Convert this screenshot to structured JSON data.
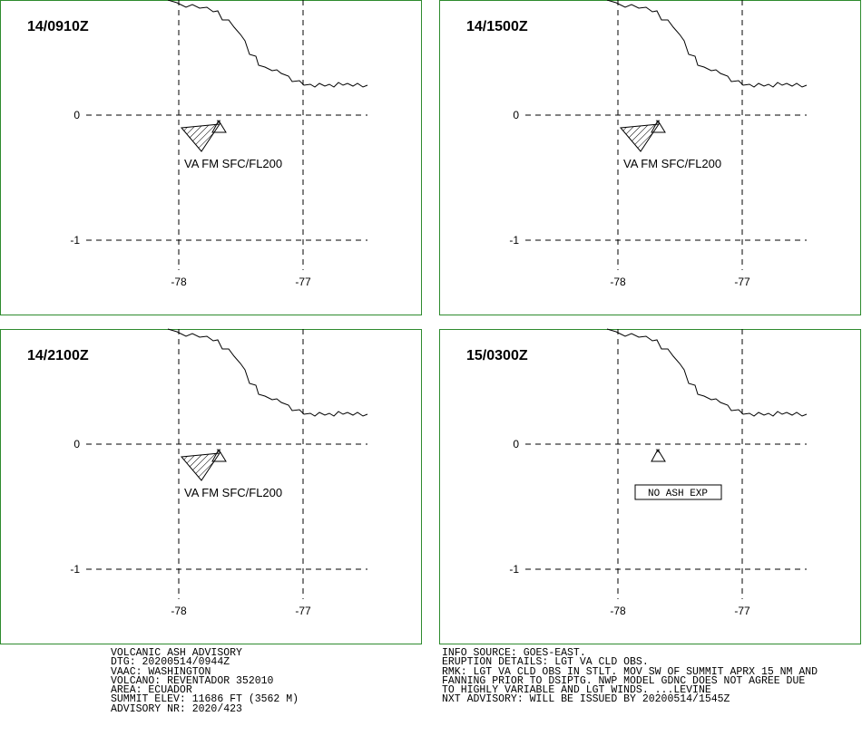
{
  "panels": [
    {
      "time": "14/0910Z",
      "lat_labels": [
        "0",
        "-1"
      ],
      "lon_labels": [
        "-78",
        "-77"
      ],
      "annotation": "VA FM SFC/FL200"
    },
    {
      "time": "14/1500Z",
      "lat_labels": [
        "0",
        "-1"
      ],
      "lon_labels": [
        "-78",
        "-77"
      ],
      "annotation": "VA FM SFC/FL200"
    },
    {
      "time": "14/2100Z",
      "lat_labels": [
        "0",
        "-1"
      ],
      "lon_labels": [
        "-78",
        "-77"
      ],
      "annotation": "VA FM SFC/FL200"
    },
    {
      "time": "15/0300Z",
      "lat_labels": [
        "0",
        "-1"
      ],
      "lon_labels": [
        "-78",
        "-77"
      ],
      "annotation": "NO ASH EXP"
    }
  ],
  "advisory": {
    "left": [
      "VOLCANIC ASH ADVISORY",
      "DTG: 20200514/0944Z",
      "VAAC: WASHINGTON",
      "VOLCANO: REVENTADOR 352010",
      "AREA: ECUADOR",
      "SUMMIT ELEV: 11686 FT (3562 M)",
      "ADVISORY NR: 2020/423"
    ],
    "right": [
      "INFO SOURCE: GOES-EAST.",
      "ERUPTION DETAILS: LGT VA CLD OBS.",
      "RMK: LGT VA CLD OBS IN STLT. MOV SW OF SUMMIT APRX 15 NM AND",
      "FANNING PRIOR TO DSIPTG. NWP MODEL GDNC DOES NOT AGREE DUE",
      "TO HIGHLY VARIABLE AND LGT WINDS. ...LEVINE",
      "NXT ADVISORY: WILL BE ISSUED BY 20200514/1545Z"
    ]
  }
}
